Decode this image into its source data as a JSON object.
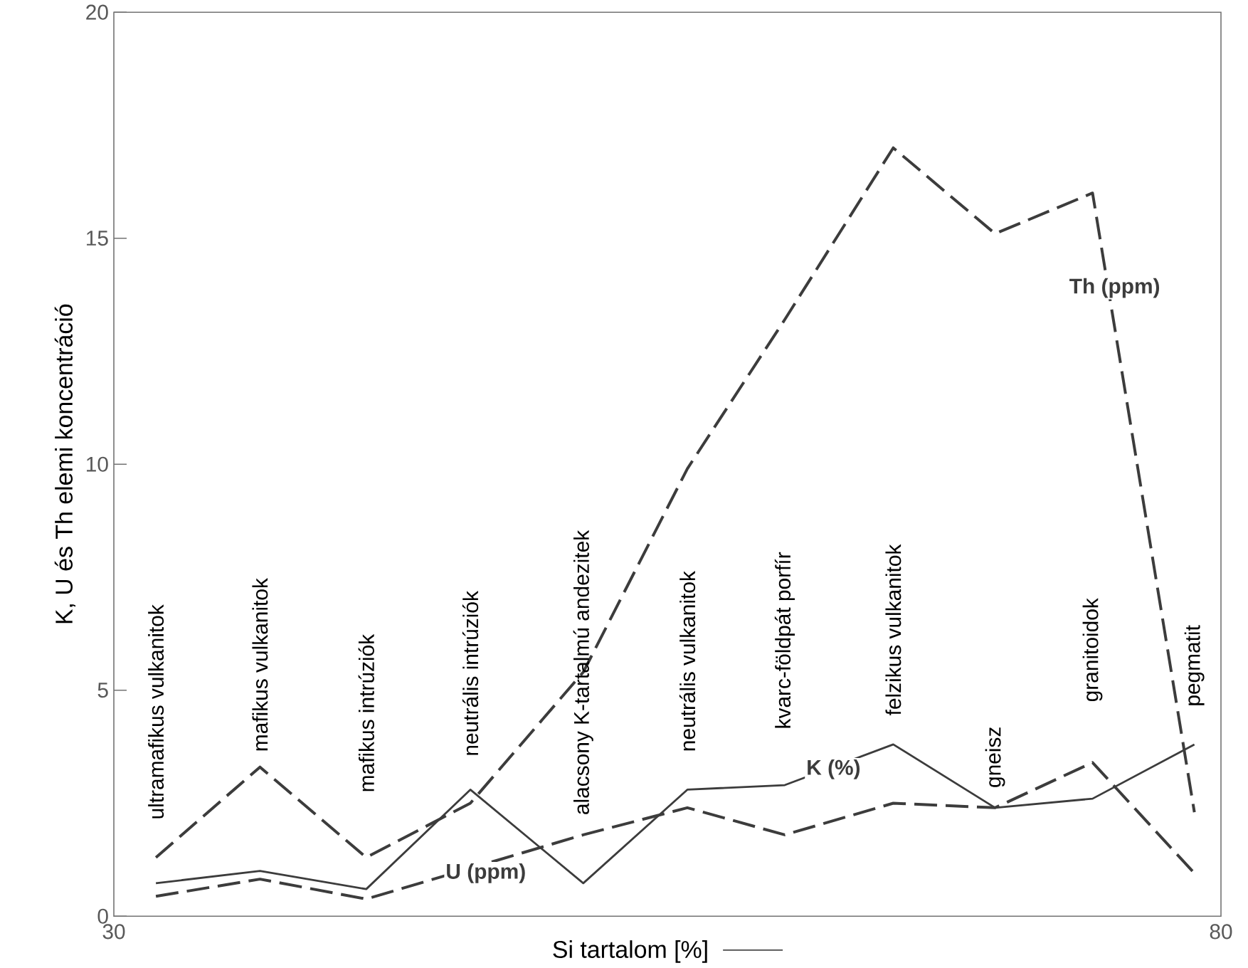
{
  "chart_data": {
    "type": "line",
    "xlabel": "Si tartalom [%]",
    "ylabel": "K, U és Th elemi koncentráció",
    "xlim": [
      30,
      80
    ],
    "ylim": [
      0,
      20
    ],
    "xticks": [
      30,
      80
    ],
    "yticks": [
      0,
      5,
      10,
      15,
      20
    ],
    "grid": false,
    "legend": false,
    "marker": "none",
    "x": [
      31.9,
      36.6,
      41.4,
      46.1,
      51.2,
      55.9,
      60.3,
      65.2,
      69.8,
      74.2,
      78.8
    ],
    "series": [
      {
        "name": "Th (ppm)",
        "color": "#3c3c3c",
        "line_style": "dashed",
        "values": [
          1.3,
          3.3,
          1.3,
          2.5,
          5.4,
          9.9,
          13.2,
          17.0,
          15.1,
          16.0,
          2.3
        ]
      },
      {
        "name": "K (%)",
        "color": "#3c3c3c",
        "line_style": "solid",
        "values": [
          0.73,
          1.0,
          0.6,
          2.8,
          0.73,
          2.8,
          2.9,
          3.8,
          2.4,
          2.6,
          3.8
        ]
      },
      {
        "name": "U (ppm)",
        "color": "#3c3c3c",
        "line_style": "dashed",
        "values": [
          0.44,
          0.82,
          0.38,
          null,
          1.8,
          2.4,
          1.8,
          2.5,
          2.4,
          3.4,
          0.95
        ]
      }
    ],
    "annotations": [
      "ultramafikus vulkanitok",
      "mafikus vulkanitok",
      "mafikus intrúziók",
      "neutrális intrúziók",
      "alacsony K-tartalmú andezitek",
      "neutrális vulkanitok",
      "kvarc-földpát porfír",
      "felzikus vulkanitok",
      "gneisz",
      "granitoidok",
      "pegmatit"
    ]
  }
}
